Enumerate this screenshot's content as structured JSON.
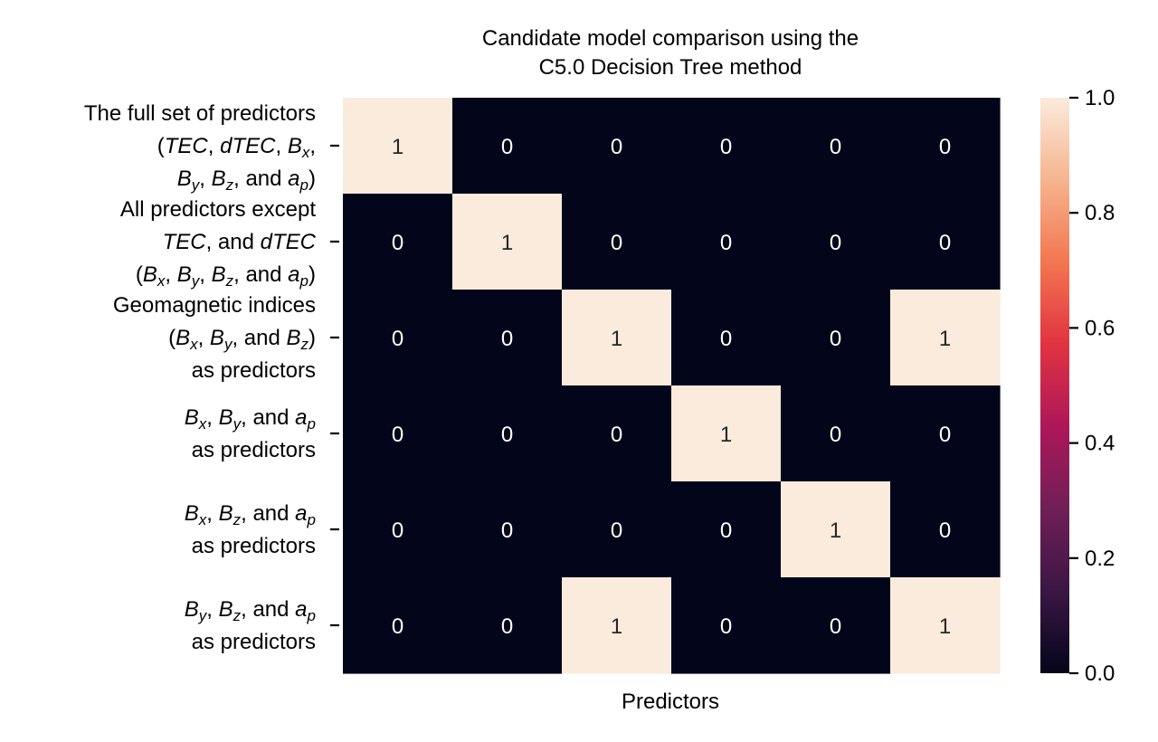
{
  "chart_data": {
    "type": "heatmap",
    "title": [
      "Candidate model comparison using the",
      "C5.0 Decision Tree method"
    ],
    "xlabel": "Predictors",
    "ylabel": "",
    "rows": [
      {
        "lines": [
          [
            {
              "t": "The full set of predictors "
            }
          ],
          [
            {
              "t": "("
            },
            {
              "t": "TEC",
              "i": true
            },
            {
              "t": ", "
            },
            {
              "t": "dTEC",
              "i": true
            },
            {
              "t": ", "
            },
            {
              "t": "B",
              "i": true
            },
            {
              "t": "x",
              "i": true,
              "sub": true
            },
            {
              "t": ","
            }
          ],
          [
            {
              "t": "B",
              "i": true
            },
            {
              "t": "y",
              "i": true,
              "sub": true
            },
            {
              "t": ", "
            },
            {
              "t": "B",
              "i": true
            },
            {
              "t": "z",
              "i": true,
              "sub": true
            },
            {
              "t": ", and "
            },
            {
              "t": "a",
              "i": true
            },
            {
              "t": "p",
              "i": true,
              "sub": true
            },
            {
              "t": ")"
            }
          ]
        ]
      },
      {
        "lines": [
          [
            {
              "t": "All predictors except"
            }
          ],
          [
            {
              "t": "TEC",
              "i": true
            },
            {
              "t": ", and "
            },
            {
              "t": "dTEC",
              "i": true
            }
          ],
          [
            {
              "t": "("
            },
            {
              "t": "B",
              "i": true
            },
            {
              "t": "x",
              "i": true,
              "sub": true
            },
            {
              "t": ", "
            },
            {
              "t": "B",
              "i": true
            },
            {
              "t": "y",
              "i": true,
              "sub": true
            },
            {
              "t": ", "
            },
            {
              "t": "B",
              "i": true
            },
            {
              "t": "z",
              "i": true,
              "sub": true
            },
            {
              "t": ", and "
            },
            {
              "t": "a",
              "i": true
            },
            {
              "t": "p",
              "i": true,
              "sub": true
            },
            {
              "t": ")"
            }
          ]
        ]
      },
      {
        "lines": [
          [
            {
              "t": "Geomagnetic indices "
            }
          ],
          [
            {
              "t": "("
            },
            {
              "t": "B",
              "i": true
            },
            {
              "t": "x",
              "i": true,
              "sub": true
            },
            {
              "t": ", "
            },
            {
              "t": "B",
              "i": true
            },
            {
              "t": "y",
              "i": true,
              "sub": true
            },
            {
              "t": ", and "
            },
            {
              "t": "B",
              "i": true
            },
            {
              "t": "z",
              "i": true,
              "sub": true
            },
            {
              "t": ")"
            }
          ],
          [
            {
              "t": "as predictors"
            }
          ]
        ]
      },
      {
        "lines": [
          [
            {
              "t": "B",
              "i": true
            },
            {
              "t": "x",
              "i": true,
              "sub": true
            },
            {
              "t": ", "
            },
            {
              "t": "B",
              "i": true
            },
            {
              "t": "y",
              "i": true,
              "sub": true
            },
            {
              "t": ", and "
            },
            {
              "t": "a",
              "i": true
            },
            {
              "t": "p",
              "i": true,
              "sub": true
            }
          ],
          [
            {
              "t": "as predictors"
            }
          ]
        ]
      },
      {
        "lines": [
          [
            {
              "t": "B",
              "i": true
            },
            {
              "t": "x",
              "i": true,
              "sub": true
            },
            {
              "t": ", "
            },
            {
              "t": "B",
              "i": true
            },
            {
              "t": "z",
              "i": true,
              "sub": true
            },
            {
              "t": ", and "
            },
            {
              "t": "a",
              "i": true
            },
            {
              "t": "p",
              "i": true,
              "sub": true
            }
          ],
          [
            {
              "t": "as predictors"
            }
          ]
        ]
      },
      {
        "lines": [
          [
            {
              "t": "B",
              "i": true
            },
            {
              "t": "y",
              "i": true,
              "sub": true
            },
            {
              "t": ", "
            },
            {
              "t": "B",
              "i": true
            },
            {
              "t": "z",
              "i": true,
              "sub": true
            },
            {
              "t": ", and "
            },
            {
              "t": "a",
              "i": true
            },
            {
              "t": "p",
              "i": true,
              "sub": true
            }
          ],
          [
            {
              "t": "as predictors"
            }
          ]
        ]
      }
    ],
    "values": [
      [
        1,
        0,
        0,
        0,
        0,
        0
      ],
      [
        0,
        1,
        0,
        0,
        0,
        0
      ],
      [
        0,
        0,
        1,
        0,
        0,
        1
      ],
      [
        0,
        0,
        0,
        1,
        0,
        0
      ],
      [
        0,
        0,
        0,
        0,
        1,
        0
      ],
      [
        0,
        0,
        1,
        0,
        0,
        1
      ]
    ],
    "colorbar": {
      "range": [
        0.0,
        1.0
      ],
      "ticks": [
        "0.0",
        "0.2",
        "0.4",
        "0.6",
        "0.8",
        "1.0"
      ],
      "colors": [
        "#03051a",
        "#3b1644",
        "#701f57",
        "#ad1759",
        "#e13342",
        "#f37651",
        "#f6b48f",
        "#faebdd"
      ]
    },
    "grid": false,
    "legend": "colorbar-right"
  }
}
